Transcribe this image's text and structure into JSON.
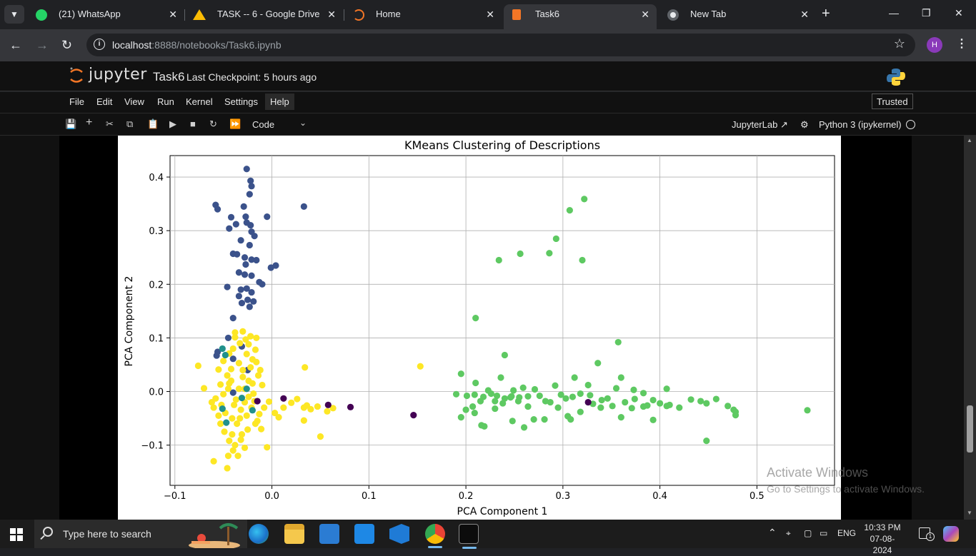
{
  "browser": {
    "tabs": [
      {
        "label": "(21) WhatsApp",
        "icon": "whatsapp-icon"
      },
      {
        "label": "TASK -- 6 - Google Drive",
        "icon": "google-drive-icon"
      },
      {
        "label": "Home",
        "icon": "jupyter-icon"
      },
      {
        "label": "Task6",
        "icon": "notebook-icon",
        "active": true
      },
      {
        "label": "New Tab",
        "icon": "chrome-icon"
      }
    ],
    "whatsapp_badge": "21",
    "url_host": "localhost",
    "url_rest": ":8888/notebooks/Task6.ipynb",
    "profile_initial": "H"
  },
  "jupyter": {
    "logo_text": "jupyter",
    "notebook_name": "Task6",
    "checkpoint": "Last Checkpoint: 5 hours ago",
    "menu": [
      "File",
      "Edit",
      "View",
      "Run",
      "Kernel",
      "Settings",
      "Help"
    ],
    "trusted": "Trusted",
    "cell_type": "Code",
    "jupyterlab_link": "JupyterLab",
    "kernel": "Python 3 (ipykernel)"
  },
  "chart_data": {
    "type": "scatter",
    "title": "KMeans Clustering of Descriptions",
    "xlabel": "PCA Component 1",
    "ylabel": "PCA Component 2",
    "xlim": [
      -0.105,
      0.58
    ],
    "ylim": [
      -0.175,
      0.44
    ],
    "xticks": [
      -0.1,
      0.0,
      0.1,
      0.2,
      0.3,
      0.4,
      0.5
    ],
    "xtick_labels": [
      "−0.1",
      "0.0",
      "0.1",
      "0.2",
      "0.3",
      "0.4",
      "0.5"
    ],
    "yticks": [
      -0.1,
      0.0,
      0.1,
      0.2,
      0.3,
      0.4
    ],
    "ytick_labels": [
      "−0.1",
      "0.0",
      "0.1",
      "0.2",
      "0.3",
      "0.4"
    ],
    "grid": true,
    "colormap": "viridis",
    "series": [
      {
        "color": "#3b528b",
        "points": [
          [
            -0.026,
            0.415
          ],
          [
            -0.058,
            0.348
          ],
          [
            -0.056,
            0.34
          ],
          [
            -0.022,
            0.393
          ],
          [
            -0.021,
            0.383
          ],
          [
            -0.023,
            0.368
          ],
          [
            -0.029,
            0.345
          ],
          [
            -0.042,
            0.325
          ],
          [
            -0.027,
            0.326
          ],
          [
            -0.005,
            0.326
          ],
          [
            0.033,
            0.345
          ],
          [
            -0.026,
            0.315
          ],
          [
            -0.037,
            0.312
          ],
          [
            -0.022,
            0.31
          ],
          [
            -0.044,
            0.304
          ],
          [
            -0.021,
            0.298
          ],
          [
            -0.018,
            0.29
          ],
          [
            -0.032,
            0.282
          ],
          [
            -0.023,
            0.273
          ],
          [
            -0.04,
            0.257
          ],
          [
            -0.036,
            0.256
          ],
          [
            -0.028,
            0.25
          ],
          [
            -0.021,
            0.246
          ],
          [
            -0.016,
            0.245
          ],
          [
            -0.027,
            0.237
          ],
          [
            0.004,
            0.235
          ],
          [
            -0.001,
            0.231
          ],
          [
            -0.034,
            0.222
          ],
          [
            -0.028,
            0.218
          ],
          [
            -0.021,
            0.216
          ],
          [
            -0.013,
            0.204
          ],
          [
            -0.01,
            0.2
          ],
          [
            -0.046,
            0.195
          ],
          [
            -0.032,
            0.19
          ],
          [
            -0.026,
            0.192
          ],
          [
            -0.021,
            0.185
          ],
          [
            -0.034,
            0.178
          ],
          [
            -0.025,
            0.171
          ],
          [
            -0.019,
            0.168
          ],
          [
            -0.031,
            0.165
          ],
          [
            -0.023,
            0.158
          ],
          [
            -0.04,
            0.137
          ],
          [
            -0.045,
            0.1
          ],
          [
            -0.056,
            0.074
          ],
          [
            -0.057,
            0.067
          ],
          [
            -0.04,
            0.061
          ],
          [
            -0.031,
            0.084
          ],
          [
            -0.025,
            0.04
          ],
          [
            -0.04,
            -0.002
          ]
        ]
      },
      {
        "color": "#5ec962",
        "points": [
          [
            0.322,
            0.359
          ],
          [
            0.307,
            0.338
          ],
          [
            0.293,
            0.285
          ],
          [
            0.256,
            0.257
          ],
          [
            0.286,
            0.258
          ],
          [
            0.234,
            0.245
          ],
          [
            0.32,
            0.245
          ],
          [
            0.21,
            0.137
          ],
          [
            0.357,
            0.092
          ],
          [
            0.24,
            0.068
          ],
          [
            0.336,
            0.053
          ],
          [
            0.195,
            0.033
          ],
          [
            0.236,
            0.026
          ],
          [
            0.312,
            0.026
          ],
          [
            0.36,
            0.026
          ],
          [
            0.21,
            0.016
          ],
          [
            0.292,
            0.011
          ],
          [
            0.259,
            0.007
          ],
          [
            0.326,
            0.012
          ],
          [
            0.223,
            0.002
          ],
          [
            0.249,
            0.002
          ],
          [
            0.271,
            0.004
          ],
          [
            0.355,
            0.006
          ],
          [
            0.373,
            0.003
          ],
          [
            0.407,
            0.005
          ],
          [
            0.19,
            -0.005
          ],
          [
            0.201,
            -0.008
          ],
          [
            0.209,
            -0.006
          ],
          [
            0.218,
            -0.01
          ],
          [
            0.226,
            -0.004
          ],
          [
            0.232,
            -0.008
          ],
          [
            0.24,
            -0.013
          ],
          [
            0.247,
            -0.009
          ],
          [
            0.255,
            -0.011
          ],
          [
            0.264,
            -0.009
          ],
          [
            0.276,
            -0.008
          ],
          [
            0.282,
            -0.018
          ],
          [
            0.298,
            -0.006
          ],
          [
            0.303,
            -0.013
          ],
          [
            0.31,
            -0.01
          ],
          [
            0.318,
            -0.004
          ],
          [
            0.328,
            -0.007
          ],
          [
            0.34,
            -0.016
          ],
          [
            0.346,
            -0.013
          ],
          [
            0.364,
            -0.02
          ],
          [
            0.374,
            -0.014
          ],
          [
            0.383,
            -0.003
          ],
          [
            0.393,
            -0.016
          ],
          [
            0.4,
            -0.022
          ],
          [
            0.41,
            -0.025
          ],
          [
            0.42,
            -0.03
          ],
          [
            0.432,
            -0.015
          ],
          [
            0.442,
            -0.018
          ],
          [
            0.458,
            -0.014
          ],
          [
            0.448,
            -0.022
          ],
          [
            0.47,
            -0.027
          ],
          [
            0.478,
            -0.038
          ],
          [
            0.478,
            -0.044
          ],
          [
            0.552,
            -0.035
          ],
          [
            0.2,
            -0.034
          ],
          [
            0.209,
            -0.04
          ],
          [
            0.216,
            -0.063
          ],
          [
            0.23,
            -0.032
          ],
          [
            0.248,
            -0.055
          ],
          [
            0.26,
            -0.067
          ],
          [
            0.27,
            -0.052
          ],
          [
            0.281,
            -0.052
          ],
          [
            0.305,
            -0.046
          ],
          [
            0.318,
            -0.038
          ],
          [
            0.339,
            -0.03
          ],
          [
            0.36,
            -0.048
          ],
          [
            0.371,
            -0.031
          ],
          [
            0.383,
            -0.028
          ],
          [
            0.393,
            -0.053
          ],
          [
            0.448,
            -0.092
          ],
          [
            0.476,
            -0.034
          ],
          [
            0.219,
            -0.065
          ],
          [
            0.264,
            -0.028
          ],
          [
            0.287,
            -0.02
          ],
          [
            0.295,
            -0.03
          ],
          [
            0.308,
            -0.052
          ],
          [
            0.331,
            -0.023
          ],
          [
            0.351,
            -0.027
          ],
          [
            0.387,
            -0.026
          ],
          [
            0.407,
            -0.027
          ],
          [
            0.23,
            -0.018
          ],
          [
            0.238,
            -0.022
          ],
          [
            0.246,
            -0.011
          ],
          [
            0.254,
            -0.018
          ],
          [
            0.195,
            -0.048
          ],
          [
            0.207,
            -0.028
          ],
          [
            0.215,
            -0.018
          ]
        ]
      },
      {
        "color": "#fde725",
        "points": [
          [
            -0.076,
            0.048
          ],
          [
            -0.07,
            0.006
          ],
          [
            -0.06,
            -0.13
          ],
          [
            -0.046,
            -0.143
          ],
          [
            -0.045,
            -0.12
          ],
          [
            -0.04,
            -0.11
          ],
          [
            -0.032,
            -0.09
          ],
          [
            -0.005,
            -0.104
          ],
          [
            -0.017,
            0.078
          ],
          [
            -0.027,
            0.097
          ],
          [
            -0.038,
            0.101
          ],
          [
            -0.026,
            0.07
          ],
          [
            -0.04,
            0.08
          ],
          [
            -0.05,
            0.057
          ],
          [
            -0.055,
            0.041
          ],
          [
            -0.034,
            0.053
          ],
          [
            -0.046,
            0.03
          ],
          [
            -0.042,
            0.02
          ],
          [
            -0.03,
            0.027
          ],
          [
            -0.02,
            0.015
          ],
          [
            -0.034,
            0.005
          ],
          [
            -0.05,
            -0.005
          ],
          [
            -0.052,
            -0.025
          ],
          [
            -0.048,
            -0.04
          ],
          [
            -0.041,
            -0.05
          ],
          [
            -0.036,
            -0.06
          ],
          [
            -0.025,
            -0.071
          ],
          [
            -0.031,
            -0.08
          ],
          [
            -0.044,
            -0.092
          ],
          [
            -0.017,
            -0.06
          ],
          [
            -0.013,
            -0.042
          ],
          [
            -0.008,
            -0.03
          ],
          [
            -0.003,
            -0.019
          ],
          [
            0.003,
            -0.04
          ],
          [
            0.02,
            -0.021
          ],
          [
            0.026,
            -0.014
          ],
          [
            0.034,
            0.045
          ],
          [
            0.033,
            -0.03
          ],
          [
            0.036,
            -0.026
          ],
          [
            0.04,
            -0.033
          ],
          [
            0.047,
            -0.028
          ],
          [
            0.057,
            -0.037
          ],
          [
            0.063,
            -0.031
          ],
          [
            0.033,
            -0.054
          ],
          [
            0.05,
            -0.084
          ],
          [
            0.153,
            0.047
          ],
          [
            -0.038,
            0.11
          ],
          [
            -0.03,
            0.112
          ],
          [
            -0.022,
            0.103
          ],
          [
            -0.016,
            0.1
          ],
          [
            -0.024,
            0.088
          ],
          [
            -0.033,
            0.09
          ],
          [
            -0.044,
            0.071
          ],
          [
            -0.053,
            0.013
          ],
          [
            -0.058,
            -0.013
          ],
          [
            -0.055,
            -0.045
          ],
          [
            -0.028,
            -0.02
          ],
          [
            -0.024,
            -0.01
          ],
          [
            -0.019,
            -0.004
          ],
          [
            -0.014,
            0.03
          ],
          [
            -0.01,
            0.012
          ],
          [
            -0.045,
            0.005
          ],
          [
            -0.037,
            -0.015
          ],
          [
            -0.032,
            -0.034
          ],
          [
            -0.026,
            -0.045
          ],
          [
            -0.021,
            -0.03
          ],
          [
            -0.018,
            -0.018
          ],
          [
            -0.015,
            -0.055
          ],
          [
            -0.011,
            -0.07
          ],
          [
            -0.049,
            -0.075
          ],
          [
            -0.053,
            -0.06
          ],
          [
            -0.041,
            -0.08
          ],
          [
            -0.038,
            -0.1
          ],
          [
            -0.028,
            -0.105
          ],
          [
            -0.035,
            -0.12
          ],
          [
            -0.042,
            0.042
          ],
          [
            -0.03,
            0.04
          ],
          [
            -0.022,
            0.045
          ],
          [
            -0.016,
            0.055
          ],
          [
            -0.044,
            0.015
          ],
          [
            -0.028,
            0.005
          ],
          [
            0.007,
            -0.048
          ],
          [
            0.012,
            -0.03
          ],
          [
            -0.06,
            -0.03
          ],
          [
            -0.062,
            -0.02
          ],
          [
            -0.039,
            -0.025
          ],
          [
            -0.033,
            -0.05
          ],
          [
            -0.024,
            0.02
          ],
          [
            -0.02,
            0.06
          ],
          [
            -0.012,
            0.04
          ]
        ]
      },
      {
        "color": "#21918c",
        "points": [
          [
            -0.051,
            0.08
          ],
          [
            -0.026,
            0.005
          ],
          [
            -0.051,
            -0.032
          ],
          [
            -0.02,
            -0.035
          ],
          [
            -0.047,
            -0.058
          ],
          [
            -0.048,
            0.068
          ],
          [
            -0.031,
            -0.012
          ]
        ]
      },
      {
        "color": "#440154",
        "points": [
          [
            -0.015,
            -0.018
          ],
          [
            0.012,
            -0.013
          ],
          [
            0.058,
            -0.025
          ],
          [
            0.081,
            -0.029
          ],
          [
            0.146,
            -0.044
          ],
          [
            0.326,
            -0.02
          ]
        ]
      }
    ]
  },
  "watermark": {
    "line1": "Activate Windows",
    "line2": "Go to Settings to activate Windows."
  },
  "taskbar": {
    "search_placeholder": "Type here to search",
    "language": "ENG",
    "time": "10:33 PM",
    "date": "07-08-2024",
    "notification_count": "1"
  }
}
